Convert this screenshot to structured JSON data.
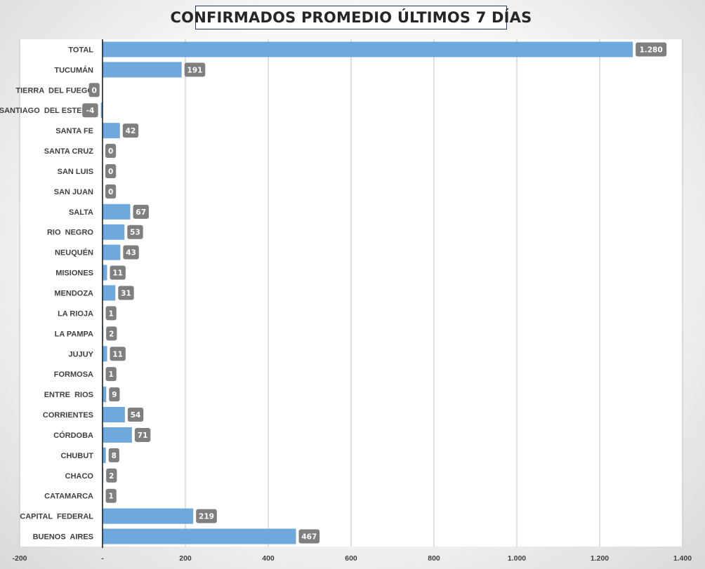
{
  "chart_data": {
    "type": "bar",
    "orientation": "horizontal",
    "title": "CONFIRMADOS PROMEDIO ÚLTIMOS 7 DÍAS",
    "categories": [
      "TOTAL",
      "TUCUMÁN",
      "TIERRA  DEL FUEGO",
      "SANTIAGO  DEL ESTERO",
      "SANTA FE",
      "SANTA CRUZ",
      "SAN LUIS",
      "SAN JUAN",
      "SALTA",
      "RIO  NEGRO",
      "NEUQUÉN",
      "MISIONES",
      "MENDOZA",
      "LA RIOJA",
      "LA PAMPA",
      "JUJUY",
      "FORMOSA",
      "ENTRE  RIOS",
      "CORRIENTES",
      "CÓRDOBA",
      "CHUBUT",
      "CHACO",
      "CATAMARCA",
      "CAPITAL  FEDERAL",
      "BUENOS  AIRES"
    ],
    "values": [
      1280,
      191,
      -0.4,
      -4,
      42,
      0,
      0,
      0,
      67,
      53,
      43,
      11,
      31,
      1,
      2,
      11,
      1,
      9,
      54,
      71,
      8,
      2,
      1,
      219,
      467
    ],
    "data_labels": [
      "1.280",
      "191",
      "0",
      "-4",
      "42",
      "0",
      "0",
      "0",
      "67",
      "53",
      "43",
      "11",
      "31",
      "1",
      "2",
      "11",
      "1",
      "9",
      "54",
      "71",
      "8",
      "2",
      "1",
      "219",
      "467"
    ],
    "xlim": [
      -200,
      1400
    ],
    "x_ticks": [
      -200,
      0,
      200,
      400,
      600,
      800,
      1000,
      1200,
      1400
    ],
    "x_tick_labels": [
      "-200",
      "-",
      "200",
      "400",
      "600",
      "800",
      "1.000",
      "1.200",
      "1.400"
    ],
    "grid": "vertical",
    "legend": "none",
    "bar_color": "#6fa8dc",
    "label_box_color": "#7f7f7f",
    "plot_background": "#ffffff"
  }
}
